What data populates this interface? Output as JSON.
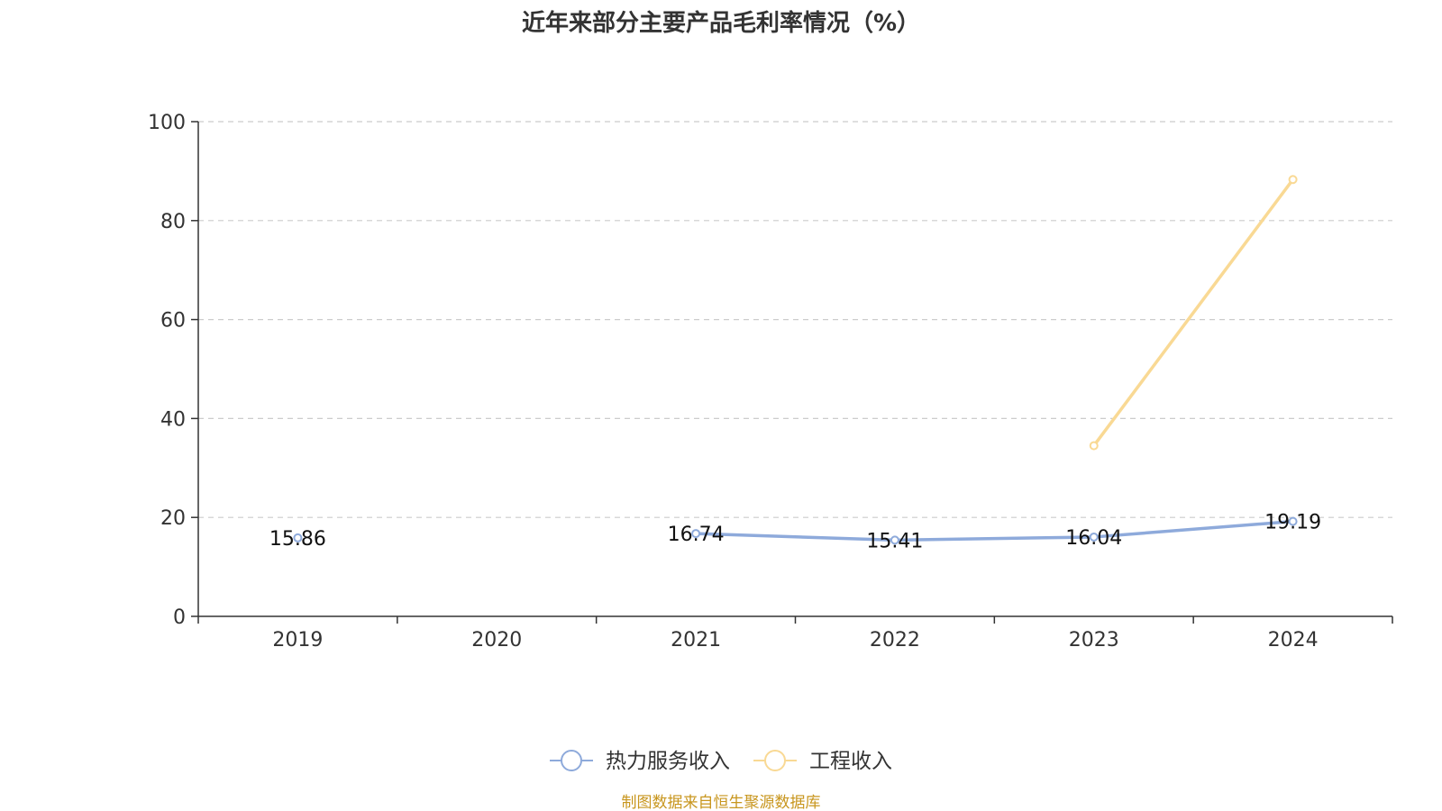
{
  "chart_data": {
    "type": "line",
    "title": "近年来部分主要产品毛利率情况（%）",
    "categories": [
      "2019",
      "2020",
      "2021",
      "2022",
      "2023",
      "2024"
    ],
    "ylim": [
      0,
      100
    ],
    "yticks": [
      0,
      20,
      40,
      60,
      80,
      100
    ],
    "grid": true,
    "legend_position": "bottom",
    "series": [
      {
        "name": "热力服务收入",
        "color": "#8eaadb",
        "values": [
          15.86,
          null,
          16.74,
          15.41,
          16.04,
          19.19
        ],
        "labels": [
          "15.86",
          "",
          "16.74",
          "15.41",
          "16.04",
          "19.19"
        ]
      },
      {
        "name": "工程收入",
        "color": "#f9d994",
        "values": [
          null,
          null,
          null,
          null,
          34.5,
          88.3
        ],
        "labels": [
          "",
          "",
          "",
          "",
          "",
          ""
        ]
      }
    ]
  },
  "footer": {
    "source": "制图数据来自恒生聚源数据库"
  }
}
